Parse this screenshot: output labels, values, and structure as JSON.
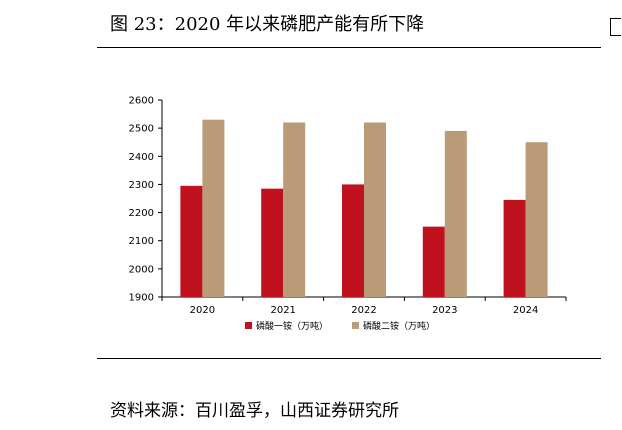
{
  "header": {
    "title": "图 23：2020 年以来磷肥产能有所下降"
  },
  "footer": {
    "source": "资料来源：百川盈孚，山西证券研究所"
  },
  "colors": {
    "series1": "#c0111f",
    "series2": "#b99b78",
    "axis": "#000000"
  },
  "chart_data": {
    "type": "bar",
    "title": "",
    "xlabel": "",
    "ylabel": "",
    "categories": [
      "2020",
      "2021",
      "2022",
      "2023",
      "2024"
    ],
    "series": [
      {
        "name": "磷酸一铵（万吨）",
        "values": [
          2295,
          2285,
          2300,
          2150,
          2245
        ]
      },
      {
        "name": "磷酸二铵（万吨）",
        "values": [
          2530,
          2520,
          2520,
          2490,
          2450
        ]
      }
    ],
    "ylim": [
      1900,
      2600
    ],
    "yticks": [
      1900,
      2000,
      2100,
      2200,
      2300,
      2400,
      2500,
      2600
    ],
    "grid": false,
    "legend": "bottom"
  }
}
